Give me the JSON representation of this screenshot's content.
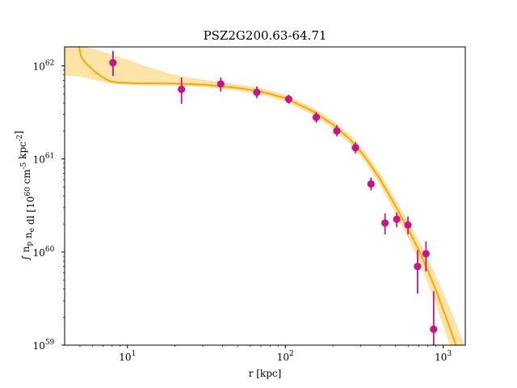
{
  "chart_data": {
    "type": "scatter",
    "title": "PSZ2G200.63-64.71",
    "xlabel": "r [kpc]",
    "ylabel": "∫ n_p n_e dl [10^60 cm^-5 kpc^-2]",
    "xscale": "log",
    "yscale": "log",
    "xlim": [
      4.0,
      1380
    ],
    "ylim": [
      1e+59,
      1.6e+62
    ],
    "x_ticks": [
      {
        "value": 10,
        "label": "10",
        "sup": "1"
      },
      {
        "value": 100,
        "label": "10",
        "sup": "2"
      },
      {
        "value": 1000,
        "label": "10",
        "sup": "3"
      }
    ],
    "y_ticks": [
      {
        "value": 1e+59,
        "label": "10",
        "sup": "59"
      },
      {
        "value": 1e+60,
        "label": "10",
        "sup": "60"
      },
      {
        "value": 1e+61,
        "label": "10",
        "sup": "61"
      },
      {
        "value": 1e+62,
        "label": "10",
        "sup": "62"
      }
    ],
    "grid": false,
    "colors": {
      "points": "#c71585",
      "model": "#ffa500",
      "band": "#ffd98a"
    },
    "points": [
      {
        "x": 8.1,
        "y": 1.08e+62,
        "ylo": 7.8e+61,
        "yhi": 1.45e+62
      },
      {
        "x": 22,
        "y": 5.6e+61,
        "ylo": 3.9e+61,
        "yhi": 7.5e+61
      },
      {
        "x": 39,
        "y": 6.4e+61,
        "ylo": 5.3e+61,
        "yhi": 7.5e+61
      },
      {
        "x": 66,
        "y": 5.2e+61,
        "ylo": 4.5e+61,
        "yhi": 6e+61
      },
      {
        "x": 105,
        "y": 4.4e+61,
        "ylo": 3.9e+61,
        "yhi": 4.9e+61
      },
      {
        "x": 157,
        "y": 2.8e+61,
        "ylo": 2.45e+61,
        "yhi": 3.2e+61
      },
      {
        "x": 212,
        "y": 2e+61,
        "ylo": 1.75e+61,
        "yhi": 2.3e+61
      },
      {
        "x": 278,
        "y": 1.32e+61,
        "ylo": 1.15e+61,
        "yhi": 1.52e+61
      },
      {
        "x": 349,
        "y": 5.4e+60,
        "ylo": 4.6e+60,
        "yhi": 6.3e+60
      },
      {
        "x": 428,
        "y": 2.05e+60,
        "ylo": 1.55e+60,
        "yhi": 2.6e+60
      },
      {
        "x": 508,
        "y": 2.25e+60,
        "ylo": 1.85e+60,
        "yhi": 2.65e+60
      },
      {
        "x": 598,
        "y": 1.95e+60,
        "ylo": 1.55e+60,
        "yhi": 2.4e+60
      },
      {
        "x": 688,
        "y": 7e+59,
        "ylo": 3.6e+59,
        "yhi": 1.05e+60
      },
      {
        "x": 778,
        "y": 9.6e+59,
        "ylo": 6.2e+59,
        "yhi": 1.3e+60
      },
      {
        "x": 870,
        "y": 1.48e+59,
        "ylo": 5e+58,
        "yhi": 3.8e+59
      }
    ],
    "model_line": [
      [
        4.9,
        1.7e+62
      ],
      [
        5.1,
        1.25e+62
      ],
      [
        5.5,
        1.05e+62
      ],
      [
        6.3,
        8.5e+61
      ],
      [
        7.0,
        7.5e+61
      ],
      [
        7.8,
        6.8e+61
      ],
      [
        9,
        6.6e+61
      ],
      [
        12,
        6.5e+61
      ],
      [
        20,
        6.45e+61
      ],
      [
        30,
        6.3e+61
      ],
      [
        50,
        5.8e+61
      ],
      [
        70,
        5.3e+61
      ],
      [
        100,
        4.5e+61
      ],
      [
        150,
        3.25e+61
      ],
      [
        200,
        2.35e+61
      ],
      [
        260,
        1.6e+61
      ],
      [
        320,
        1.05e+61
      ],
      [
        400,
        6e+60
      ],
      [
        500,
        3.1e+60
      ],
      [
        600,
        1.75e+60
      ],
      [
        700,
        1.05e+60
      ],
      [
        800,
        6.3e+59
      ],
      [
        900,
        3.9e+59
      ],
      [
        1000,
        2.4e+59
      ],
      [
        1100,
        1.55e+59
      ],
      [
        1200,
        1.02e+59
      ],
      [
        1300,
        7e+58
      ]
    ],
    "model_band_upper": [
      [
        4.0,
        1.8e+62
      ],
      [
        5,
        1.65e+62
      ],
      [
        6.5,
        1.45e+62
      ],
      [
        8,
        1.3e+62
      ],
      [
        10,
        1.15e+62
      ],
      [
        13,
        9.8e+61
      ],
      [
        17,
        8.5e+61
      ],
      [
        22,
        7.6e+61
      ],
      [
        30,
        7e+61
      ],
      [
        45,
        6.4e+61
      ],
      [
        70,
        5.7e+61
      ],
      [
        100,
        4.85e+61
      ],
      [
        150,
        3.5e+61
      ],
      [
        200,
        2.55e+61
      ],
      [
        260,
        1.75e+61
      ],
      [
        320,
        1.17e+61
      ],
      [
        400,
        6.8e+60
      ],
      [
        500,
        3.6e+60
      ],
      [
        600,
        2.1e+60
      ],
      [
        700,
        1.3e+60
      ],
      [
        800,
        8.3e+59
      ],
      [
        900,
        5.4e+59
      ],
      [
        1000,
        3.6e+59
      ],
      [
        1100,
        2.45e+59
      ],
      [
        1200,
        1.7e+59
      ],
      [
        1300,
        1.18e+59
      ],
      [
        1380,
        9.5e+58
      ]
    ],
    "model_band_lower": [
      [
        4.0,
        8e+61
      ],
      [
        5,
        7.8e+61
      ],
      [
        6.5,
        7e+61
      ],
      [
        8,
        6.5e+61
      ],
      [
        10,
        6.3e+61
      ],
      [
        20,
        6.2e+61
      ],
      [
        30,
        6e+61
      ],
      [
        50,
        5.5e+61
      ],
      [
        70,
        5e+61
      ],
      [
        100,
        4.2e+61
      ],
      [
        150,
        3e+61
      ],
      [
        200,
        2.15e+61
      ],
      [
        260,
        1.45e+61
      ],
      [
        320,
        9.5e+60
      ],
      [
        400,
        5.3e+60
      ],
      [
        500,
        2.65e+60
      ],
      [
        600,
        1.45e+60
      ],
      [
        700,
        8.3e+59
      ],
      [
        800,
        4.8e+59
      ],
      [
        900,
        2.85e+59
      ],
      [
        1000,
        1.7e+59
      ],
      [
        1100,
        1.05e+59
      ],
      [
        1200,
        6.5e+58
      ],
      [
        1300,
        4e+58
      ],
      [
        1380,
        3e+58
      ]
    ]
  }
}
